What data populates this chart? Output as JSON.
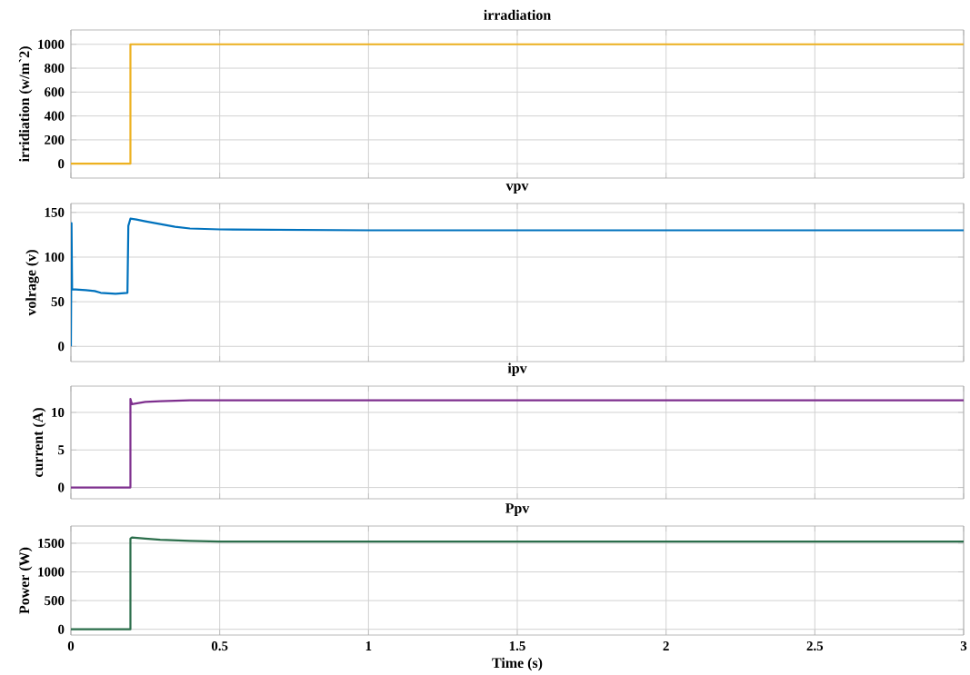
{
  "chart_data": [
    {
      "type": "line",
      "title": "irradiation",
      "ylabel": "irridiation (w/m`2)",
      "xlim": [
        0,
        3
      ],
      "xticks": [
        0,
        0.5,
        1,
        1.5,
        2,
        2.5,
        3
      ],
      "ylim": [
        -120,
        1120
      ],
      "yticks": [
        0,
        200,
        400,
        600,
        800,
        1000
      ],
      "grid": true,
      "tick_labels": "y",
      "series": [
        {
          "color": "#edb120",
          "x": [
            0,
            0.2,
            0.2,
            3
          ],
          "values": [
            0,
            0,
            1000,
            1000
          ]
        }
      ]
    },
    {
      "type": "line",
      "title": "vpv",
      "ylabel": "volrage (v)",
      "xlim": [
        0,
        3
      ],
      "xticks": [
        0,
        0.5,
        1,
        1.5,
        2,
        2.5,
        3
      ],
      "ylim": [
        -17,
        160
      ],
      "yticks": [
        0,
        50,
        100,
        150
      ],
      "grid": true,
      "tick_labels": "y",
      "series": [
        {
          "color": "#0072bd",
          "x": [
            0,
            0.002,
            0.004,
            0.05,
            0.08,
            0.1,
            0.15,
            0.19,
            0.193,
            0.2,
            0.22,
            0.25,
            0.3,
            0.35,
            0.4,
            0.5,
            1,
            3
          ],
          "values": [
            0,
            138,
            64,
            63,
            62,
            60,
            59,
            60,
            135,
            143,
            142,
            140,
            137,
            134,
            132,
            131,
            130,
            130
          ]
        }
      ]
    },
    {
      "type": "line",
      "title": "ipv",
      "ylabel": "current (A)",
      "xlim": [
        0,
        3
      ],
      "xticks": [
        0,
        0.5,
        1,
        1.5,
        2,
        2.5,
        3
      ],
      "ylim": [
        -1.5,
        13.5
      ],
      "yticks": [
        0,
        5,
        10
      ],
      "grid": true,
      "tick_labels": "y",
      "series": [
        {
          "color": "#7e2f8e",
          "x": [
            0,
            0.2,
            0.2,
            0.205,
            0.25,
            0.3,
            0.4,
            3
          ],
          "values": [
            0,
            0,
            11.8,
            11.1,
            11.4,
            11.5,
            11.6,
            11.6
          ]
        }
      ]
    },
    {
      "type": "line",
      "title": "Ppv",
      "ylabel": "Power (W)",
      "xlabel": "Time (s)",
      "xlim": [
        0,
        3
      ],
      "xticks": [
        0,
        0.5,
        1,
        1.5,
        2,
        2.5,
        3
      ],
      "ylim": [
        -100,
        1800
      ],
      "yticks": [
        0,
        500,
        1000,
        1500
      ],
      "grid": true,
      "series": [
        {
          "color": "#2b6e4b",
          "x": [
            0,
            0.2,
            0.2,
            0.205,
            0.25,
            0.3,
            0.4,
            0.5,
            3
          ],
          "values": [
            0,
            0,
            1580,
            1600,
            1580,
            1560,
            1540,
            1530,
            1530
          ]
        }
      ]
    }
  ]
}
